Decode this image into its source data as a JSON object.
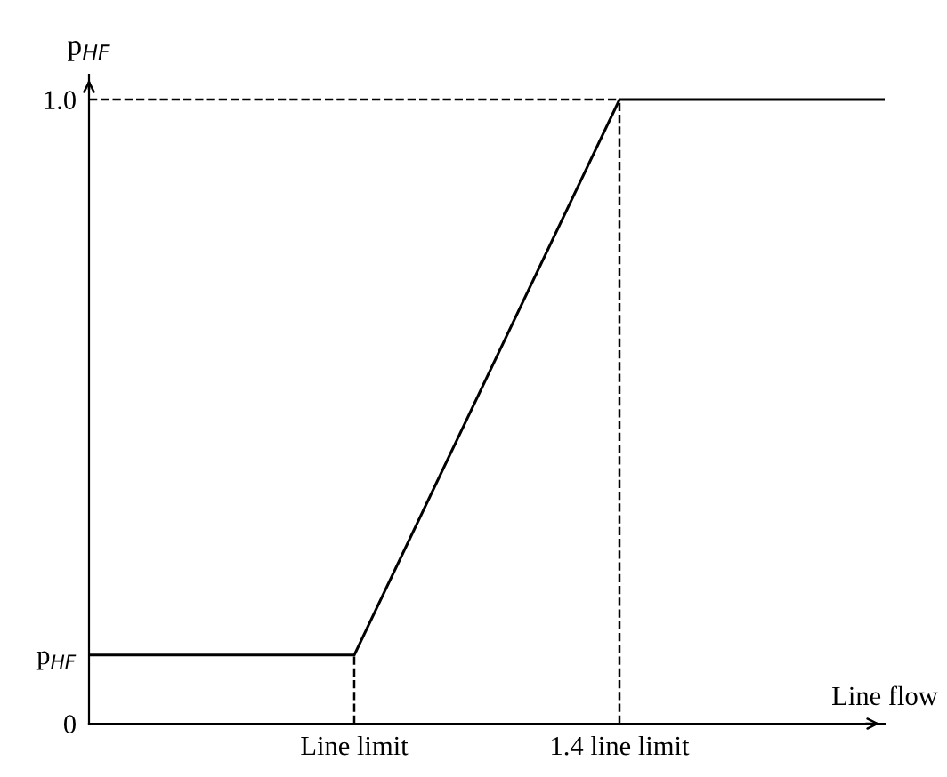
{
  "chart_data": {
    "type": "line",
    "categories": [
      null,
      "Line limit",
      "1.4 line limit",
      null
    ],
    "series": [
      {
        "color": "#000000",
        "values": [
          0.11,
          0.11,
          1.0,
          1.0
        ]
      }
    ],
    "ylim": [
      0,
      1.04
    ],
    "yticks": [
      0,
      {
        "value": 0.11,
        "label": "p$_{HF}$"
      },
      {
        "value": 1.0,
        "label": "1.0"
      }
    ],
    "xlabel": "Line flow",
    "ylabel": "p$_{HF}$",
    "ref_lines": [
      {
        "axis": "x",
        "value": "Line limit",
        "line_style": "dashed",
        "color": "#000000"
      },
      {
        "axis": "x",
        "value": "1.4 line limit",
        "line_style": "dashed",
        "color": "#000000"
      },
      {
        "axis": "y",
        "value": 1.0,
        "line_style": "dashed",
        "color": "#000000"
      }
    ],
    "grid": false,
    "marker": "none",
    "line_style": "solid"
  }
}
